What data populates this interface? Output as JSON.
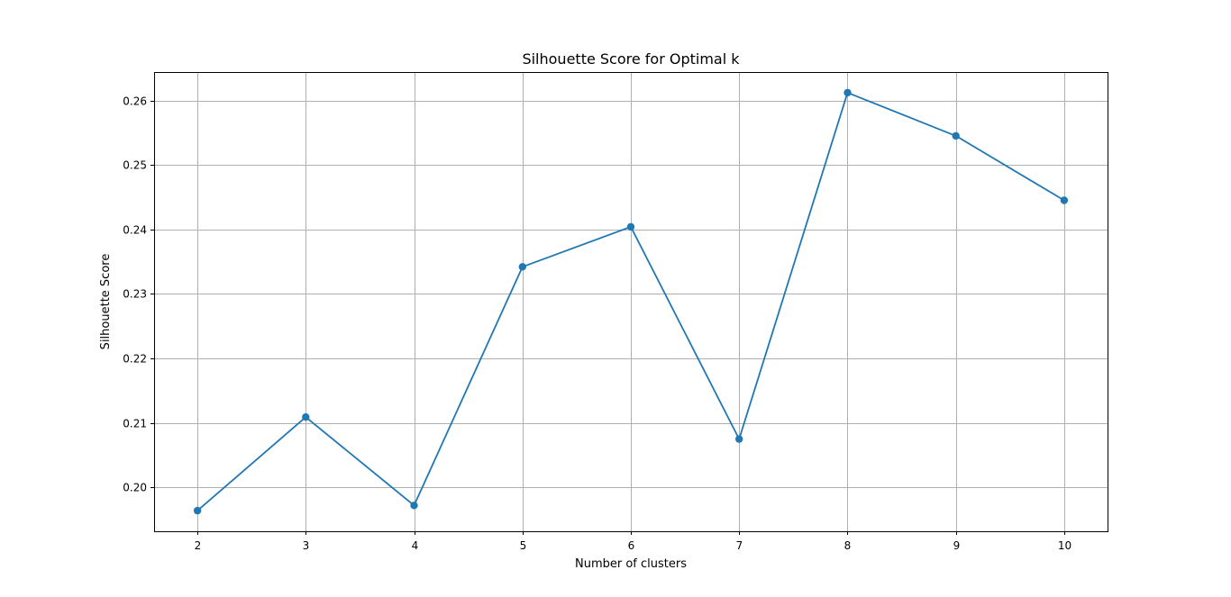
{
  "chart_data": {
    "type": "line",
    "title": "Silhouette Score for Optimal k",
    "xlabel": "Number of clusters",
    "ylabel": "Silhouette Score",
    "x": [
      2,
      3,
      4,
      5,
      6,
      7,
      8,
      9,
      10
    ],
    "series": [
      {
        "values": [
          0.1964,
          0.2109,
          0.1972,
          0.2342,
          0.2404,
          0.2075,
          0.2612,
          0.2545,
          0.2445
        ],
        "color": "#1f77b4",
        "marker": "circle"
      }
    ],
    "xticks": [
      "2",
      "3",
      "4",
      "5",
      "6",
      "7",
      "8",
      "9",
      "10"
    ],
    "yticks": [
      "0.20",
      "0.21",
      "0.22",
      "0.23",
      "0.24",
      "0.25",
      "0.26"
    ],
    "xlim": [
      1.6,
      10.4
    ],
    "ylim": [
      0.1932,
      0.2644
    ],
    "grid": true
  }
}
